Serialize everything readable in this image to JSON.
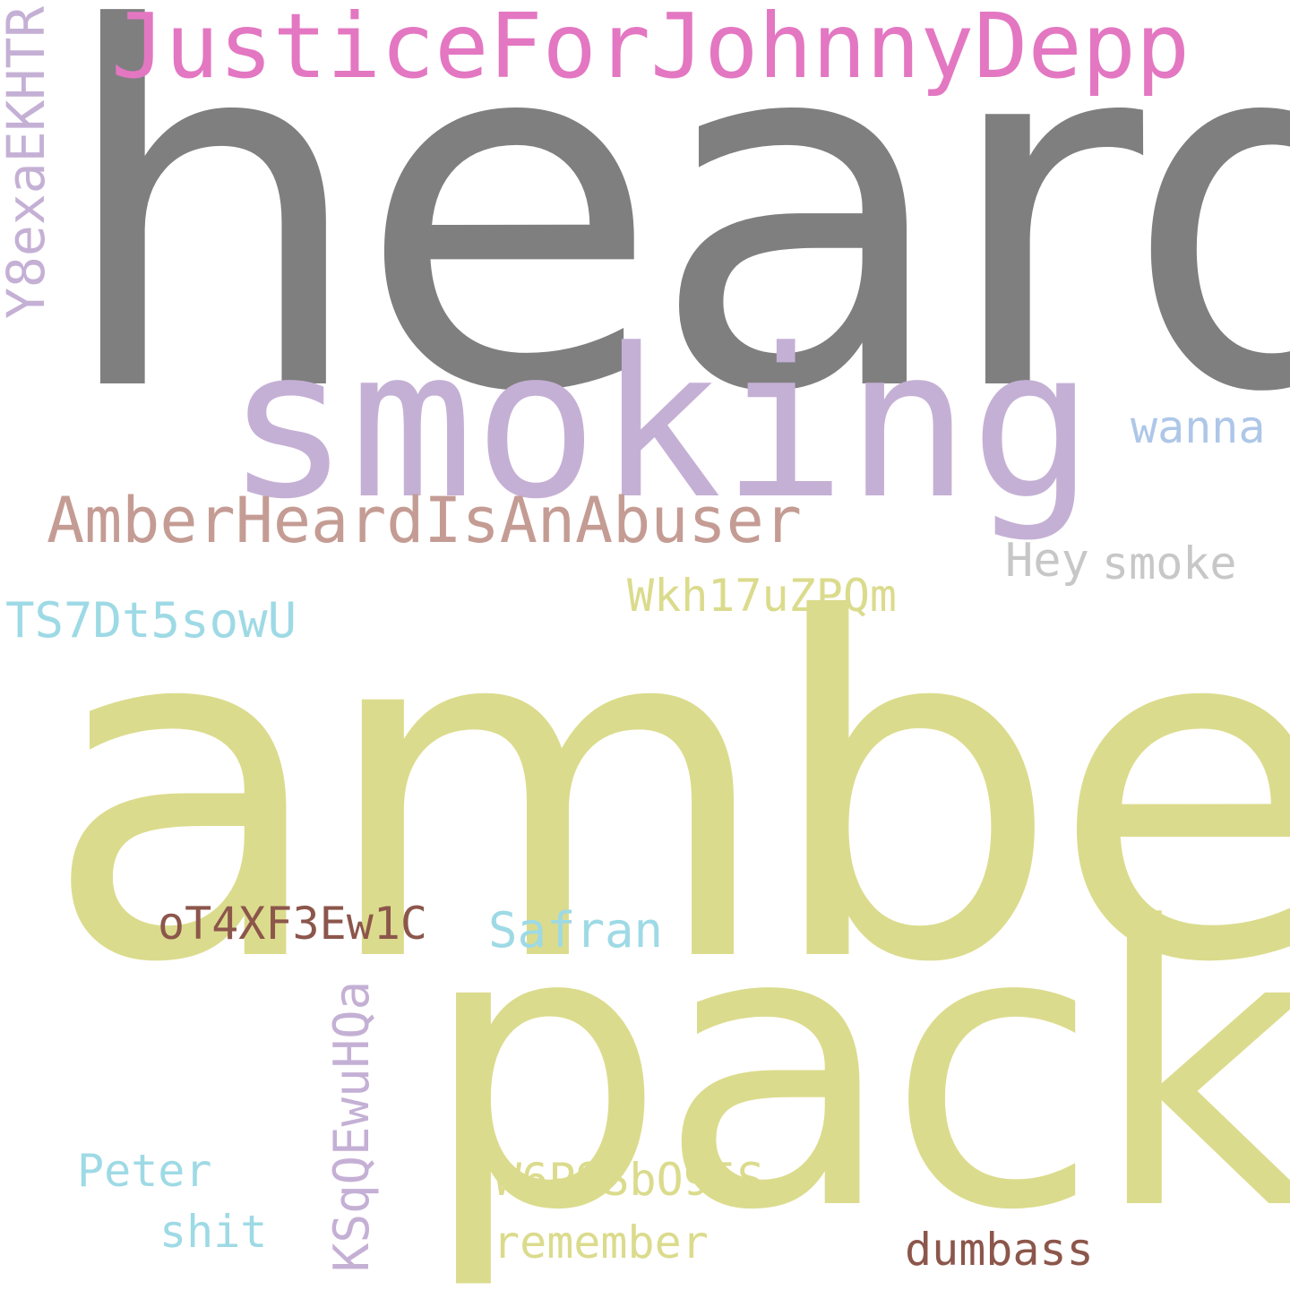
{
  "words": {
    "heard": {
      "text": "heard",
      "color": "#7f7f7f"
    },
    "justice": {
      "text": "JusticeForJohnnyDepp",
      "color": "#e377c2"
    },
    "smoking": {
      "text": "smoking",
      "color": "#c5b0d5"
    },
    "y8": {
      "text": "Y8exaEKHTR",
      "color": "#c5b0d5"
    },
    "wanna": {
      "text": "wanna",
      "color": "#aec7e8"
    },
    "amberabuser": {
      "text": "AmberHeardIsAnAbuser",
      "color": "#c49c94"
    },
    "hey": {
      "text": "Hey",
      "color": "#c7c7c7"
    },
    "smoke": {
      "text": "smoke",
      "color": "#c7c7c7"
    },
    "wkh": {
      "text": "Wkh17uZPQm",
      "color": "#dbdb8d"
    },
    "ts7": {
      "text": "TS7Dt5sowU",
      "color": "#9edae5"
    },
    "amber": {
      "text": "amber",
      "color": "#dbdb8d"
    },
    "ot4": {
      "text": "oT4XF3Ew1C",
      "color": "#8c564b"
    },
    "safran": {
      "text": "Safran",
      "color": "#9edae5"
    },
    "pack": {
      "text": "pack",
      "color": "#dbdb8d"
    },
    "ksq": {
      "text": "KSqQEwuHQa",
      "color": "#c5b0d5"
    },
    "peter": {
      "text": "Peter",
      "color": "#9edae5"
    },
    "w6p": {
      "text": "W6PSSbO95S",
      "color": "#dbdb8d"
    },
    "shit": {
      "text": "shit",
      "color": "#9edae5"
    },
    "remember": {
      "text": "remember",
      "color": "#dbdb8d"
    },
    "dumbass": {
      "text": "dumbass",
      "color": "#8c564b"
    }
  }
}
